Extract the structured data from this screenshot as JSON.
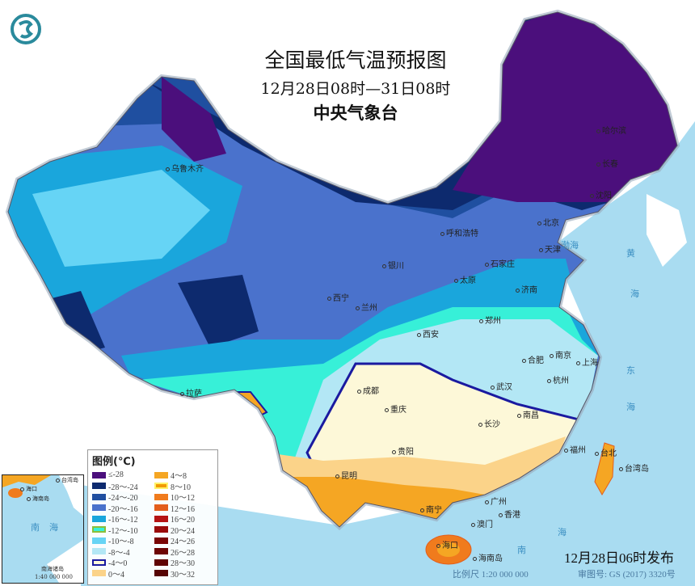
{
  "title": "全国最低气温预报图",
  "period": "12月28日08时—31日08时",
  "agency": "中央气象台",
  "logo_icon": "cma-logo-icon",
  "legend": {
    "title": "图例(℃)",
    "left": [
      {
        "label": "≤-28",
        "color": "#4b0f7c"
      },
      {
        "label": "-28～-24",
        "color": "#0d2a6e"
      },
      {
        "label": "-24～-20",
        "color": "#1f4fa0"
      },
      {
        "label": "-20～-16",
        "color": "#4a72cc"
      },
      {
        "label": "-16～-12",
        "color": "#1aa6dc"
      },
      {
        "label": "-12～-10",
        "color": "#37f0d8",
        "border": "#8bbf3a"
      },
      {
        "label": "-10～-8",
        "color": "#66d4f5"
      },
      {
        "label": "-8～-4",
        "color": "#b3e7f5"
      },
      {
        "label": "-4～0",
        "color": "#fdf8d8",
        "border": "#1a1aa0"
      },
      {
        "label": "0～4",
        "color": "#fbd389"
      }
    ],
    "right": [
      {
        "label": "4～8",
        "color": "#f5a623"
      },
      {
        "label": "8～10",
        "color": "#f29b00",
        "border": "#fff36a"
      },
      {
        "label": "10～12",
        "color": "#f07b1d"
      },
      {
        "label": "12～16",
        "color": "#e35e1c"
      },
      {
        "label": "16～20",
        "color": "#b51313"
      },
      {
        "label": "20～24",
        "color": "#9a0b0b"
      },
      {
        "label": "24～26",
        "color": "#7a0606"
      },
      {
        "label": "26～28",
        "color": "#6d0505"
      },
      {
        "label": "28～30",
        "color": "#600404"
      },
      {
        "label": "30～32",
        "color": "#560404"
      }
    ]
  },
  "cities": [
    "哈尔滨",
    "长春",
    "沈阳",
    "北京",
    "天津",
    "呼和浩特",
    "石家庄",
    "太原",
    "济南",
    "银川",
    "西宁",
    "兰州",
    "乌鲁木齐",
    "拉萨",
    "西安",
    "郑州",
    "合肥",
    "南京",
    "上海",
    "杭州",
    "武汉",
    "成都",
    "重庆",
    "长沙",
    "南昌",
    "贵阳",
    "昆明",
    "福州",
    "台北",
    "南宁",
    "广州",
    "香港",
    "澳门",
    "海口"
  ],
  "islands": [
    "海南岛",
    "台湾岛"
  ],
  "seas": [
    "渤海",
    "黄",
    "海",
    "东",
    "海",
    "南",
    "海"
  ],
  "inset": {
    "labels": [
      "海口",
      "海南岛",
      "台湾岛",
      "南",
      "海",
      "南海诸岛"
    ],
    "scale": "1:40 000 000"
  },
  "issue_time": "12月28日06时发布",
  "scale": "比例尺 1:20 000 000",
  "review_no": "审图号: GS (2017) 3320号"
}
